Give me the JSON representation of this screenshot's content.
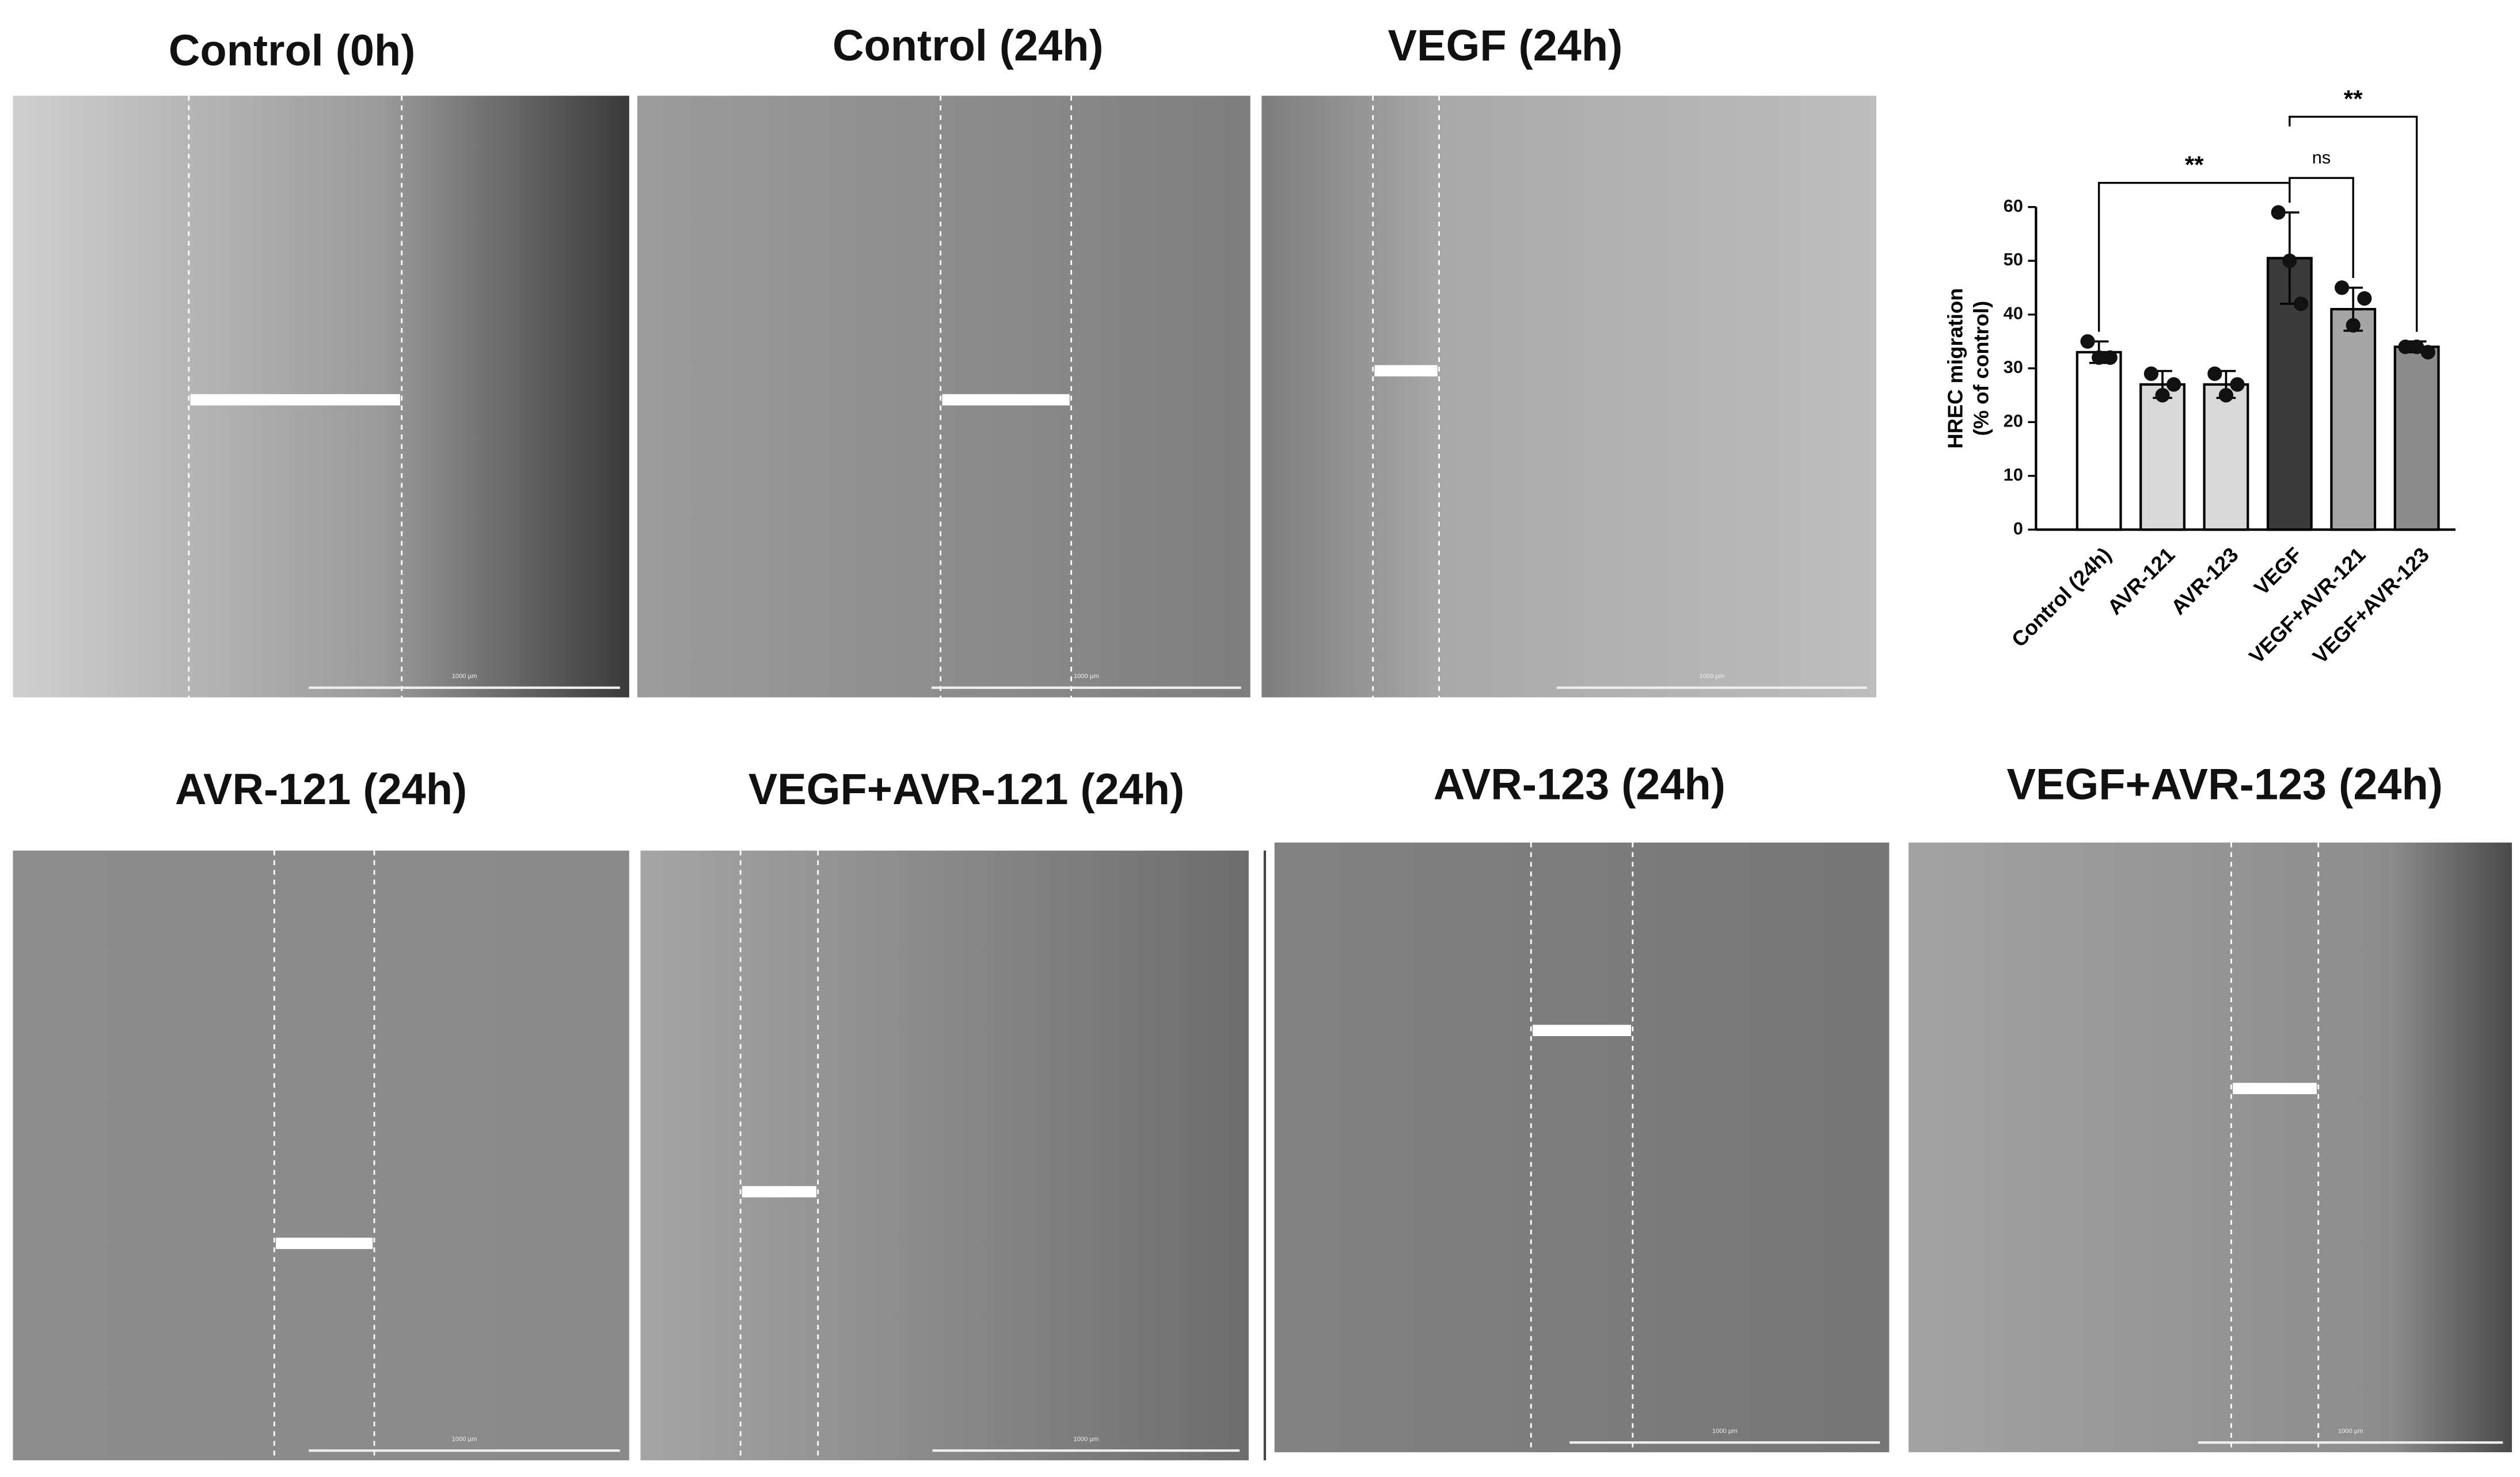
{
  "panels": [
    {
      "title": "Control (0h)"
    },
    {
      "title": "Control (24h)"
    },
    {
      "title": "VEGF (24h)"
    },
    {
      "title": "AVR-121 (24h)"
    },
    {
      "title": "VEGF+AVR-121 (24h)"
    },
    {
      "title": "AVR-123 (24h)"
    },
    {
      "title": "VEGF+AVR-123 (24h)"
    }
  ],
  "scale_label": "1000 µm",
  "chart_data": {
    "type": "bar",
    "y_label": [
      "HREC migration",
      "(% of control)"
    ],
    "categories": [
      "Control (24h)",
      "AVR-121",
      "AVR-123",
      "VEGF",
      "VEGF+AVR-121",
      "VEGF+AVR-123"
    ],
    "values": [
      33,
      27,
      27,
      50.5,
      41,
      34
    ],
    "errors": [
      2,
      2.5,
      2.5,
      8.5,
      4,
      1
    ],
    "points": [
      [
        35,
        32,
        32
      ],
      [
        29,
        25,
        27
      ],
      [
        29,
        25,
        27
      ],
      [
        59,
        50,
        42
      ],
      [
        45,
        38,
        43
      ],
      [
        34,
        34,
        33
      ]
    ],
    "colors": [
      "#ffffff",
      "#d9d9d9",
      "#d9d9d9",
      "#3a3a3a",
      "#a6a6a6",
      "#8c8c8c"
    ],
    "ylim": [
      0,
      60
    ],
    "yticks": [
      0,
      10,
      20,
      30,
      40,
      50,
      60
    ],
    "comparisons": [
      {
        "label": "**",
        "groups": [
          "Control (24h)",
          "VEGF"
        ]
      },
      {
        "label": "ns",
        "groups": [
          "VEGF",
          "VEGF+AVR-121"
        ]
      },
      {
        "label": "**",
        "groups": [
          "VEGF",
          "VEGF+AVR-123"
        ]
      }
    ]
  }
}
